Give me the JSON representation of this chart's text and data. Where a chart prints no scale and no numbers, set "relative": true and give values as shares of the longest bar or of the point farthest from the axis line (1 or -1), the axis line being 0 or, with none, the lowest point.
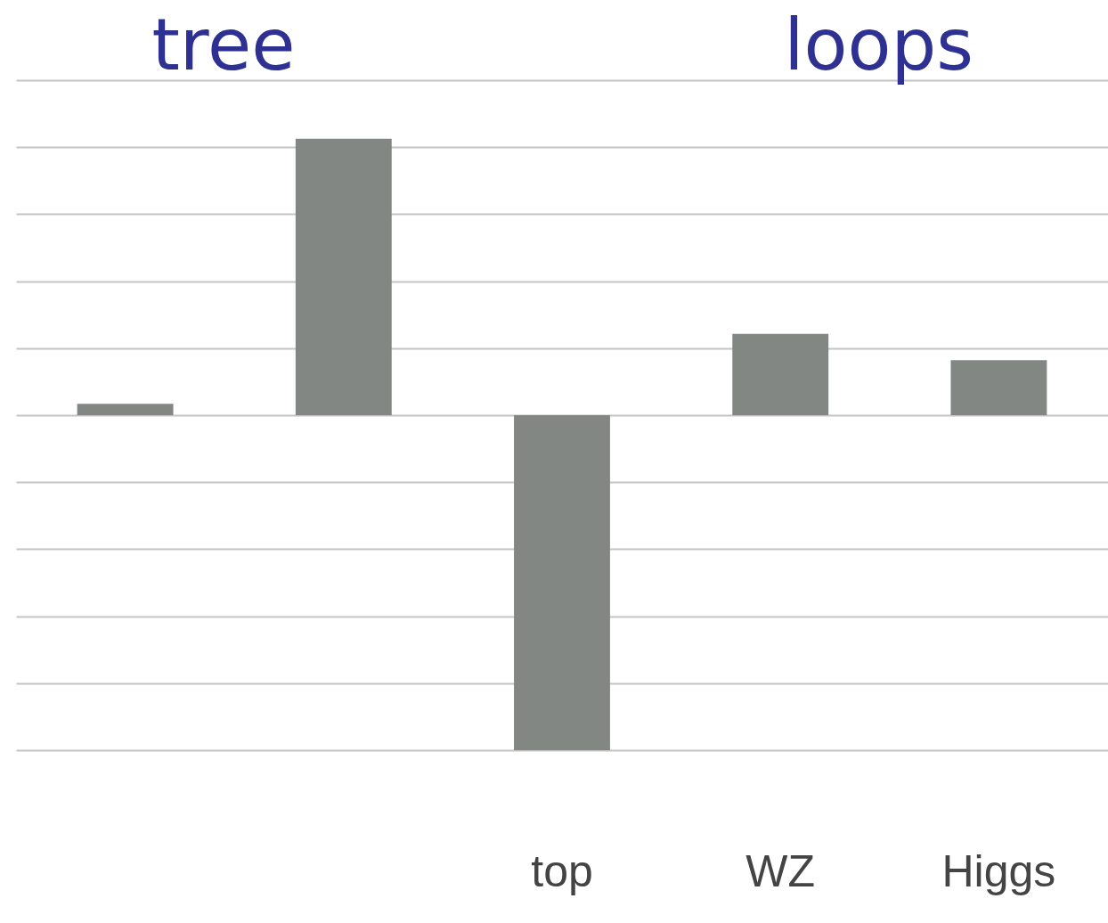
{
  "chart_data": {
    "type": "bar",
    "relative": true,
    "categories": [
      null,
      null,
      "top",
      "WZ",
      "Higgs"
    ],
    "values": [
      0.034,
      0.825,
      -1,
      0.243,
      0.164
    ],
    "color": "#828784",
    "annotations": [
      "tree",
      "loops"
    ],
    "grid": "y"
  }
}
